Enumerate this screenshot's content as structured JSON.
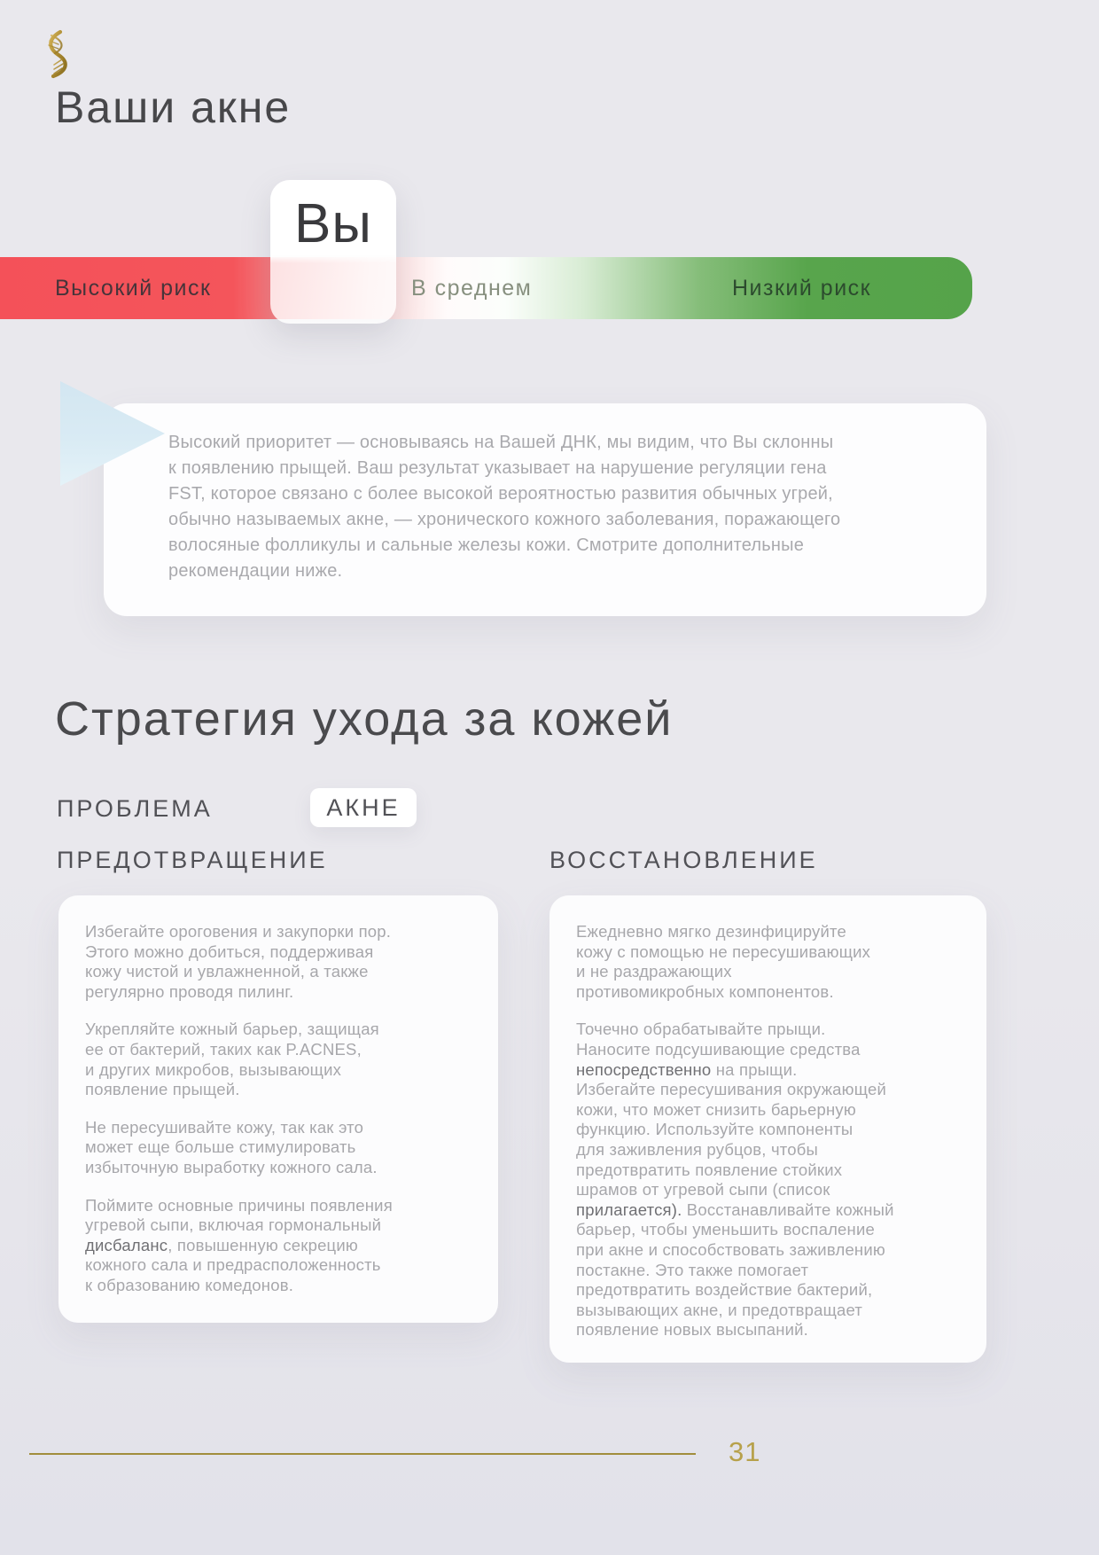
{
  "page": {
    "title": "Ваши акне",
    "page_number": "31"
  },
  "risk_scale": {
    "marker_label": "Вы",
    "high_label": "Высокий риск",
    "mid_label": "В среднем",
    "low_label": "Низкий риск",
    "high_color": "#f4555b",
    "low_color": "#57a54c"
  },
  "summary": {
    "lines": [
      "Высокий приоритет — основываясь на Вашей ДНК, мы видим, что Вы склонны",
      "к появлению прыщей. Ваш результат указывает на нарушение регуляции гена",
      "FST, которое связано с более высокой вероятностью развития обычных угрей,",
      "обычно называемых акне, — хронического кожного заболевания, поражающего",
      "волосяные фолликулы и сальные железы кожи. Смотрите дополнительные",
      "рекомендации ниже."
    ]
  },
  "strategy": {
    "title": "Стратегия ухода за кожей",
    "problem_label": "ПРОБЛЕМА",
    "problem_value": "АКНЕ",
    "emphasized": [
      "дисбаланс",
      "непосредственно",
      "прилагается)."
    ],
    "columns": [
      {
        "header": "ПРЕДОТВРАЩЕНИЕ",
        "paragraphs": [
          {
            "lines": [
              "Избегайте ороговения и закупорки пор.",
              "Этого можно добиться, поддерживая",
              "кожу чистой и увлажненной, а также",
              "регулярно проводя пилинг."
            ]
          },
          {
            "lines": [
              "Укрепляйте кожный барьер, защищая",
              "ее от бактерий, таких как P.ACNES,",
              "и других микробов, вызывающих",
              "появление прыщей."
            ]
          },
          {
            "lines": [
              "Не пересушивайте кожу, так как это",
              "может еще больше стимулировать",
              "избыточную выработку кожного сала."
            ]
          },
          {
            "lines": [
              "Поймите основные причины появления",
              "угревой сыпи, включая гормональный",
              "дисбаланс, повышенную секрецию",
              "кожного сала и предрасположенность",
              "к образованию комедонов."
            ]
          }
        ]
      },
      {
        "header": "ВОССТАНОВЛЕНИЕ",
        "paragraphs": [
          {
            "lines": [
              "Ежедневно мягко дезинфицируйте",
              "кожу с помощью не пересушивающих",
              "и не раздражающих",
              "противомикробных компонентов."
            ]
          },
          {
            "lines": [
              "Точечно обрабатывайте прыщи.",
              "Наносите подсушивающие средства",
              "непосредственно на прыщи.",
              "Избегайте пересушивания окружающей",
              "кожи, что может снизить барьерную",
              "функцию. Используйте компоненты",
              "для заживления рубцов, чтобы",
              "предотвратить появление стойких",
              "шрамов от угревой сыпи (список",
              "прилагается). Восстанавливайте кожный",
              "барьер, чтобы уменьшить воспаление",
              "при акне и способствовать заживлению",
              "постакне. Это также помогает",
              "предотвратить воздействие бактерий,",
              "вызывающих акне, и предотвращает",
              "появление новых высыпаний."
            ]
          }
        ]
      }
    ]
  }
}
